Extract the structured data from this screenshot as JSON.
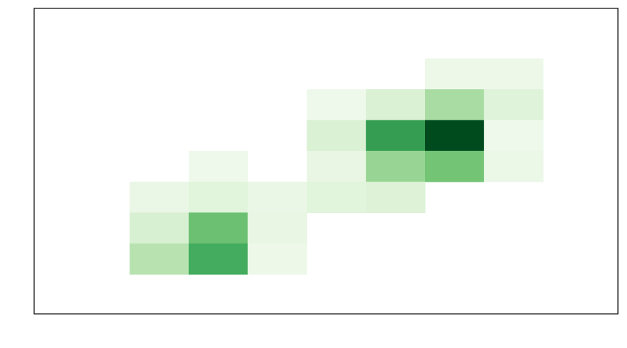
{
  "chart_data": {
    "type": "heatmap",
    "title": "",
    "xlabel": "",
    "ylabel": "",
    "grid": false,
    "legend": "none",
    "colormap": "Greens",
    "n_cols": 8,
    "n_rows": 8,
    "cells": [
      {
        "col": 5,
        "row": 7,
        "value": 0.07
      },
      {
        "col": 6,
        "row": 7,
        "value": 0.07
      },
      {
        "col": 3,
        "row": 6,
        "value": 0.06
      },
      {
        "col": 4,
        "row": 6,
        "value": 0.17
      },
      {
        "col": 5,
        "row": 6,
        "value": 0.35
      },
      {
        "col": 6,
        "row": 6,
        "value": 0.15
      },
      {
        "col": 3,
        "row": 5,
        "value": 0.17
      },
      {
        "col": 4,
        "row": 5,
        "value": 0.68
      },
      {
        "col": 5,
        "row": 5,
        "value": 0.98
      },
      {
        "col": 6,
        "row": 5,
        "value": 0.06
      },
      {
        "col": 1,
        "row": 4,
        "value": 0.06
      },
      {
        "col": 3,
        "row": 4,
        "value": 0.1
      },
      {
        "col": 4,
        "row": 4,
        "value": 0.4
      },
      {
        "col": 5,
        "row": 4,
        "value": 0.5
      },
      {
        "col": 6,
        "row": 4,
        "value": 0.08
      },
      {
        "col": 0,
        "row": 3,
        "value": 0.09
      },
      {
        "col": 1,
        "row": 3,
        "value": 0.14
      },
      {
        "col": 2,
        "row": 3,
        "value": 0.09
      },
      {
        "col": 3,
        "row": 3,
        "value": 0.14
      },
      {
        "col": 4,
        "row": 3,
        "value": 0.16
      },
      {
        "col": 0,
        "row": 2,
        "value": 0.18
      },
      {
        "col": 1,
        "row": 2,
        "value": 0.52
      },
      {
        "col": 2,
        "row": 2,
        "value": 0.1
      },
      {
        "col": 0,
        "row": 1,
        "value": 0.3
      },
      {
        "col": 1,
        "row": 1,
        "value": 0.62
      },
      {
        "col": 2,
        "row": 1,
        "value": 0.07
      }
    ]
  }
}
